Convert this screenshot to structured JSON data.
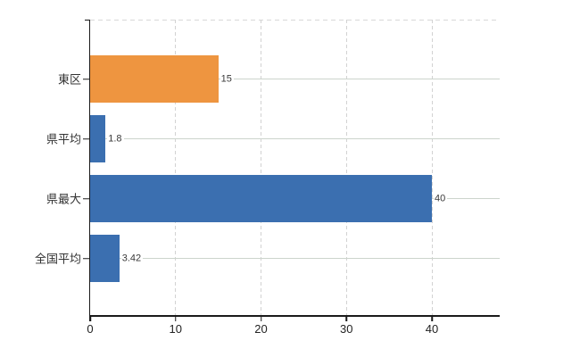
{
  "chart": {
    "background": "#ffffff",
    "axis_color": "#1a1a1a",
    "vertical_grid_color": "#d2d2d2",
    "horizontal_grid_color": "#ccd4cc",
    "top_border_color": "#d8d8d8",
    "category_label_color": "#333333",
    "value_label_color": "#3a3a3a",
    "bar_color_highlight": "#EE9540",
    "bar_color_default": "#3B6FB0"
  },
  "chart_data": {
    "type": "bar",
    "orientation": "horizontal",
    "title": "",
    "xlabel": "",
    "ylabel": "",
    "legend": "none",
    "grid": "on",
    "categories": [
      "東区",
      "県平均",
      "県最大",
      "全国平均"
    ],
    "values": [
      15,
      1.8,
      40,
      3.42
    ],
    "value_labels": [
      "15",
      "1.8",
      "40",
      "3.42"
    ],
    "bar_colors": [
      "#EE9540",
      "#3B6FB0",
      "#3B6FB0",
      "#3B6FB0"
    ],
    "x_ticks": [
      "0",
      "10",
      "20",
      "30",
      "40"
    ],
    "x_tick_values": [
      0,
      10,
      20,
      30,
      40
    ],
    "xlim": [
      0,
      48
    ]
  }
}
